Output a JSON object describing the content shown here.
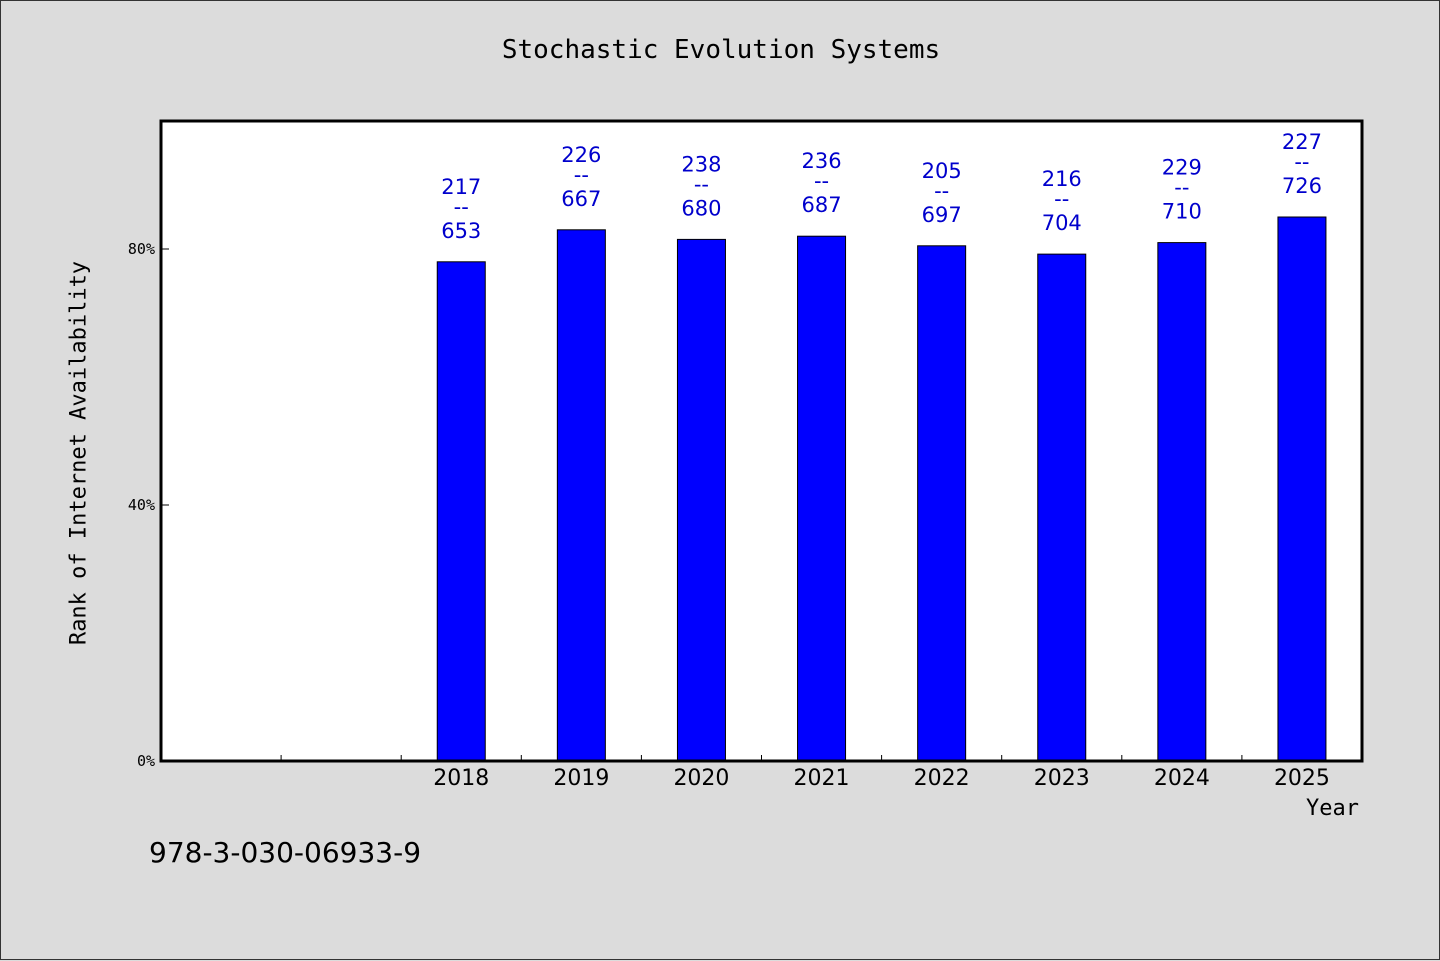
{
  "chart_data": {
    "type": "bar",
    "title": "Stochastic Evolution Systems",
    "xlabel": "Year",
    "ylabel": "Rank of Internet Availability",
    "categories": [
      "2018",
      "2019",
      "2020",
      "2021",
      "2022",
      "2023",
      "2024",
      "2025"
    ],
    "values": [
      78.0,
      83.0,
      81.5,
      82.0,
      80.5,
      79.2,
      81.0,
      85.0
    ],
    "value_unit": "%",
    "bar_labels": [
      {
        "top": "217",
        "sep": "--",
        "bottom": "653"
      },
      {
        "top": "226",
        "sep": "--",
        "bottom": "667"
      },
      {
        "top": "238",
        "sep": "--",
        "bottom": "680"
      },
      {
        "top": "236",
        "sep": "--",
        "bottom": "687"
      },
      {
        "top": "205",
        "sep": "--",
        "bottom": "697"
      },
      {
        "top": "216",
        "sep": "--",
        "bottom": "704"
      },
      {
        "top": "229",
        "sep": "--",
        "bottom": "710"
      },
      {
        "top": "227",
        "sep": "--",
        "bottom": "726"
      }
    ],
    "ylim": [
      0,
      100
    ],
    "yticks": [
      0,
      40,
      80
    ],
    "ytick_labels": [
      "0%",
      "40%",
      "80%"
    ],
    "x_slots": 10,
    "empty_leading_slots": 2,
    "grid": false,
    "legend": "none",
    "bar_color": "#0000ff",
    "label_color": "#0000cc"
  },
  "footer": {
    "isbn": "978-3-030-06933-9"
  }
}
